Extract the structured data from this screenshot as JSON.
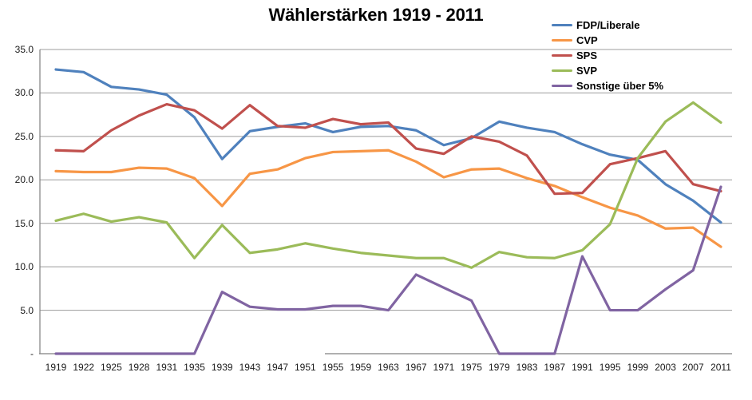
{
  "title": "Wählerstärken 1919 - 2011",
  "colors": {
    "background": "#FFFFFF",
    "gridline": "#9C9C9C",
    "axis": "#808080",
    "text": "#000000"
  },
  "chart_data": {
    "type": "line",
    "title": "Wählerstärken 1919 - 2011",
    "xlabel": "",
    "ylabel": "",
    "ylim": [
      0,
      35
    ],
    "grid": "horizontal",
    "legend_position": "top-right",
    "yticks": [
      35,
      30,
      25,
      20,
      15,
      10,
      5,
      0
    ],
    "ytick_labels": [
      "35.0",
      "30.0",
      "25.0",
      "20.0",
      "15.0",
      "10.0",
      "5.0",
      "-"
    ],
    "categories": [
      "1919",
      "1922",
      "1925",
      "1928",
      "1931",
      "1935",
      "1939",
      "1943",
      "1947",
      "1951",
      "1955",
      "1959",
      "1963",
      "1967",
      "1971",
      "1975",
      "1979",
      "1983",
      "1987",
      "1991",
      "1995",
      "1999",
      "2003",
      "2007",
      "2011"
    ],
    "series": [
      {
        "name": "FDP/Liberale",
        "color": "#4F81BD",
        "values": [
          32.7,
          32.4,
          30.7,
          30.4,
          29.8,
          27.2,
          22.4,
          25.6,
          26.1,
          26.5,
          25.5,
          26.1,
          26.2,
          25.7,
          24.0,
          24.8,
          26.7,
          26.0,
          25.5,
          24.1,
          22.9,
          22.3,
          19.5,
          17.6,
          15.1
        ]
      },
      {
        "name": "CVP",
        "color": "#F79646",
        "values": [
          21.0,
          20.9,
          20.9,
          21.4,
          21.3,
          20.2,
          17.0,
          20.7,
          21.2,
          22.5,
          23.2,
          23.3,
          23.4,
          22.1,
          20.3,
          21.2,
          21.3,
          20.2,
          19.3,
          18.0,
          16.8,
          15.9,
          14.4,
          14.5,
          12.3
        ]
      },
      {
        "name": "SPS",
        "color": "#C0504D",
        "values": [
          23.4,
          23.3,
          25.7,
          27.4,
          28.7,
          28.0,
          25.9,
          28.6,
          26.2,
          26.0,
          27.0,
          26.4,
          26.6,
          23.6,
          23.0,
          25.0,
          24.4,
          22.8,
          18.4,
          18.5,
          21.8,
          22.5,
          23.3,
          19.5,
          18.7
        ]
      },
      {
        "name": "SVP",
        "color": "#9BBB59",
        "values": [
          15.3,
          16.1,
          15.2,
          15.7,
          15.1,
          11.0,
          14.8,
          11.6,
          12.0,
          12.7,
          12.1,
          11.6,
          11.3,
          11.0,
          11.0,
          9.9,
          11.7,
          11.1,
          11.0,
          11.9,
          14.9,
          22.5,
          26.7,
          28.9,
          26.6
        ]
      },
      {
        "name": "Sonstige über 5%",
        "color": "#8064A2",
        "values": [
          0,
          0,
          0,
          0,
          0,
          0,
          7.1,
          5.4,
          5.1,
          5.1,
          5.5,
          5.5,
          5.0,
          9.1,
          7.6,
          6.1,
          0,
          0,
          0,
          11.2,
          5.0,
          5.0,
          7.4,
          9.6,
          19.2
        ]
      }
    ]
  }
}
